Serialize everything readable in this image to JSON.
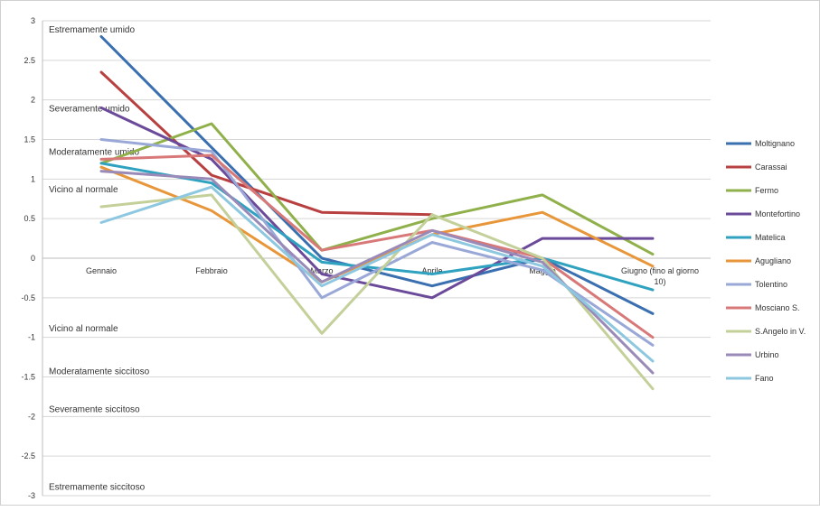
{
  "chart_data": {
    "type": "line",
    "title": "",
    "xlabel": "",
    "ylabel": "",
    "ylim": [
      -3,
      3
    ],
    "y_ticks": [
      "3",
      "2.5",
      "2",
      "1.5",
      "1",
      "0.5",
      "0",
      "-0.5",
      "-1",
      "-1.5",
      "-2",
      "-2.5",
      "-3"
    ],
    "categories": [
      "Gennaio",
      "Febbraio",
      "Marzo",
      "Aprile",
      "Maggio",
      "Giugno (fino al giorno 10)"
    ],
    "annotations": [
      {
        "text": "Estremamente umido",
        "y": 2.9
      },
      {
        "text": "Severamente umido",
        "y": 1.9
      },
      {
        "text": "Moderatamente umido",
        "y": 1.35
      },
      {
        "text": "Vicino al normale",
        "y": 0.88
      },
      {
        "text": "Vicino al normale",
        "y": -0.88
      },
      {
        "text": "Moderatamente siccitoso",
        "y": -1.42
      },
      {
        "text": "Severamente siccitoso",
        "y": -1.9
      },
      {
        "text": "Estremamente siccitoso",
        "y": -2.88
      }
    ],
    "grid": true,
    "legend_position": "right",
    "series": [
      {
        "name": "Moltignano",
        "color": "#3a6fb0",
        "values": [
          2.8,
          1.4,
          0.0,
          -0.35,
          0.0,
          -0.7
        ]
      },
      {
        "name": "Carassai",
        "color": "#b84040",
        "values": [
          2.35,
          1.05,
          0.58,
          0.55,
          null,
          null
        ]
      },
      {
        "name": "Fermo",
        "color": "#8fb04a",
        "values": [
          1.2,
          1.7,
          0.1,
          0.5,
          0.8,
          0.05
        ]
      },
      {
        "name": "Montefortino",
        "color": "#6b4a9a",
        "values": [
          1.9,
          1.25,
          -0.2,
          -0.5,
          0.25,
          0.25
        ]
      },
      {
        "name": "Matelica",
        "color": "#2fa2c0",
        "values": [
          1.2,
          0.95,
          -0.05,
          -0.2,
          0.0,
          -0.4
        ]
      },
      {
        "name": "Agugliano",
        "color": "#e8963a",
        "values": [
          1.15,
          0.6,
          -0.3,
          0.3,
          0.58,
          -0.1
        ]
      },
      {
        "name": "Tolentino",
        "color": "#9aa8d8",
        "values": [
          1.5,
          1.35,
          -0.5,
          0.2,
          -0.15,
          -1.1
        ]
      },
      {
        "name": "Mosciano S.",
        "color": "#d87878",
        "values": [
          1.25,
          1.3,
          0.1,
          0.35,
          0.0,
          -1.0
        ]
      },
      {
        "name": "S.Angelo in V.",
        "color": "#c4d09a",
        "values": [
          0.65,
          0.8,
          -0.95,
          0.55,
          0.0,
          -1.65
        ]
      },
      {
        "name": "Urbino",
        "color": "#9a8ab8",
        "values": [
          1.1,
          1.0,
          -0.3,
          0.35,
          -0.05,
          -1.45
        ]
      },
      {
        "name": "Fano",
        "color": "#8ec8e0",
        "values": [
          0.45,
          0.9,
          -0.35,
          0.3,
          -0.1,
          -1.3
        ]
      }
    ]
  }
}
